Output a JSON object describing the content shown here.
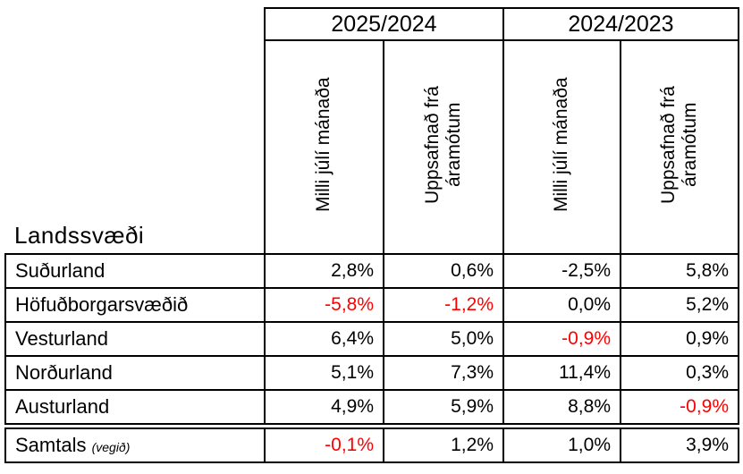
{
  "table": {
    "corner_label": "Landssvæði",
    "year_groups": [
      {
        "label": "2025/2024"
      },
      {
        "label": "2024/2023"
      }
    ],
    "sub_columns": [
      "Milli júlí mánaða",
      "Uppsafnað frá áramótum",
      "Milli júlí mánaða",
      "Uppsafnað frá áramótum"
    ],
    "rows": [
      {
        "label": "Suðurland",
        "values": [
          "2,8%",
          "0,6%",
          "-2,5%",
          "5,8%"
        ],
        "red": [
          false,
          false,
          false,
          false
        ]
      },
      {
        "label": "Höfuðborgarsvæðið",
        "values": [
          "-5,8%",
          "-1,2%",
          "0,0%",
          "5,2%"
        ],
        "red": [
          true,
          true,
          false,
          false
        ]
      },
      {
        "label": "Vesturland",
        "values": [
          "6,4%",
          "5,0%",
          "-0,9%",
          "0,9%"
        ],
        "red": [
          false,
          false,
          true,
          false
        ]
      },
      {
        "label": "Norðurland",
        "values": [
          "5,1%",
          "7,3%",
          "11,4%",
          "0,3%"
        ],
        "red": [
          false,
          false,
          false,
          false
        ]
      },
      {
        "label": "Austurland",
        "values": [
          "4,9%",
          "5,9%",
          "8,8%",
          "-0,9%"
        ],
        "red": [
          false,
          false,
          false,
          true
        ]
      }
    ],
    "total_row": {
      "label": "Samtals",
      "note": "(vegið)",
      "values": [
        "-0,1%",
        "1,2%",
        "1,0%",
        "3,9%"
      ],
      "red": [
        true,
        false,
        false,
        false
      ]
    }
  },
  "colors": {
    "negative_red": "#ff0000",
    "text": "#000000",
    "border": "#000000",
    "background": "#ffffff"
  },
  "chart_data": {
    "type": "table",
    "title": "",
    "row_header": "Landssvæði",
    "column_groups": [
      "2025/2024",
      "2024/2023"
    ],
    "columns": [
      "2025/2024 Milli júlí mánaða",
      "2025/2024 Uppsafnað frá áramótum",
      "2024/2023 Milli júlí mánaða",
      "2024/2023 Uppsafnað frá áramótum"
    ],
    "rows": [
      {
        "label": "Suðurland",
        "values_pct": [
          2.8,
          0.6,
          -2.5,
          5.8
        ]
      },
      {
        "label": "Höfuðborgarsvæðið",
        "values_pct": [
          -5.8,
          -1.2,
          0.0,
          5.2
        ]
      },
      {
        "label": "Vesturland",
        "values_pct": [
          6.4,
          5.0,
          -0.9,
          0.9
        ]
      },
      {
        "label": "Norðurland",
        "values_pct": [
          5.1,
          7.3,
          11.4,
          0.3
        ]
      },
      {
        "label": "Austurland",
        "values_pct": [
          4.9,
          5.9,
          8.8,
          -0.9
        ]
      },
      {
        "label": "Samtals (vegið)",
        "values_pct": [
          -0.1,
          1.2,
          1.0,
          3.9
        ]
      }
    ],
    "red_highlighted_cells": [
      [
        "Höfuðborgarsvæðið",
        0
      ],
      [
        "Höfuðborgarsvæðið",
        1
      ],
      [
        "Vesturland",
        2
      ],
      [
        "Austurland",
        3
      ],
      [
        "Samtals (vegið)",
        0
      ]
    ]
  }
}
